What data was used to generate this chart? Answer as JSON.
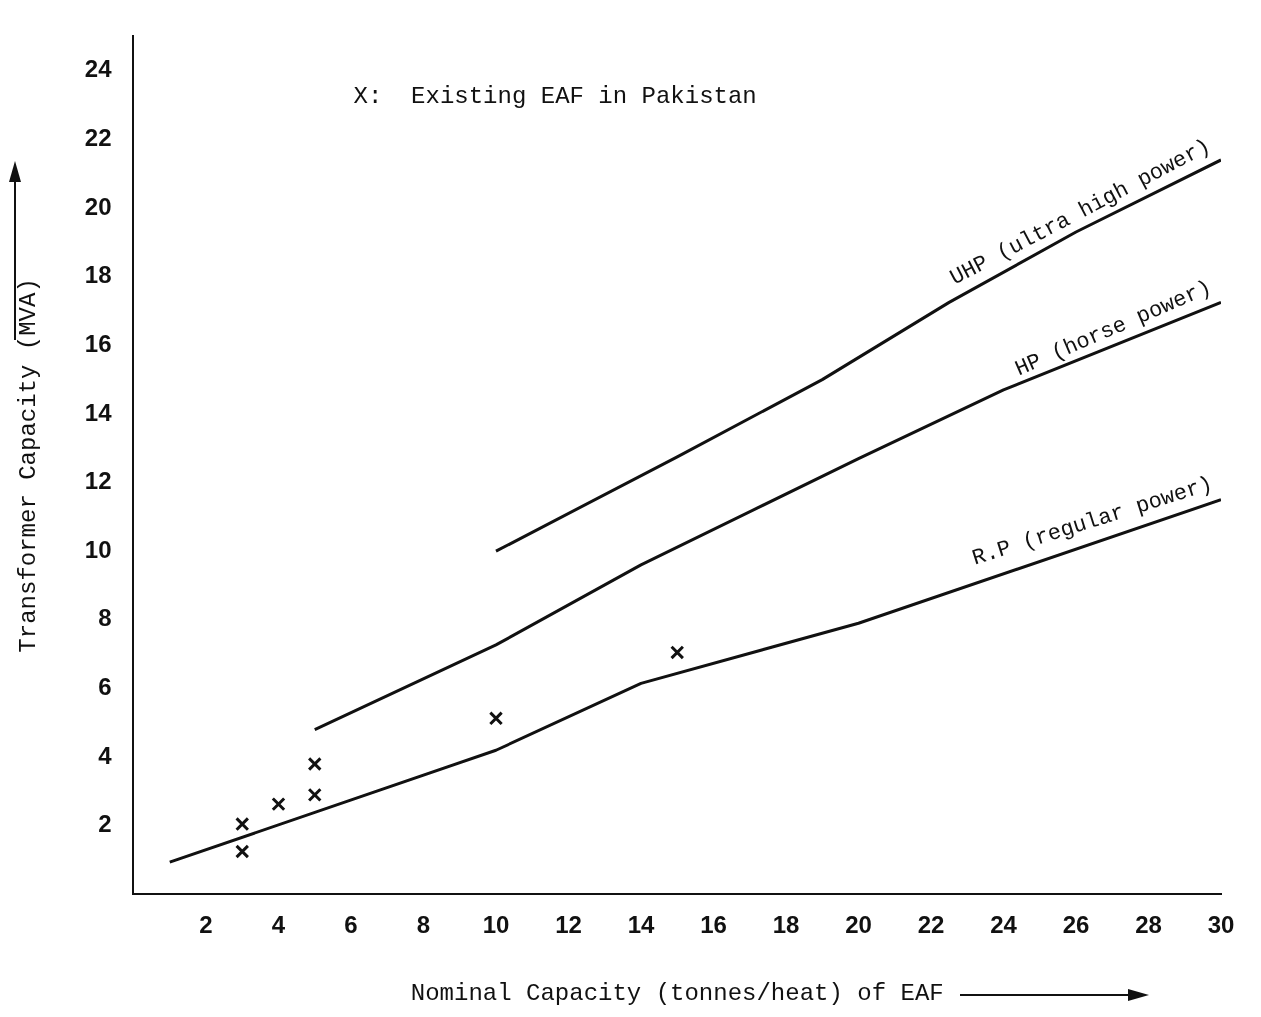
{
  "chart_data": {
    "type": "line",
    "xlabel": "Nominal Capacity (tonnes/heat) of EAF",
    "ylabel": "Transformer Capacity (MVA)",
    "xlim": [
      0,
      30
    ],
    "xticks": [
      2,
      4,
      6,
      8,
      10,
      12,
      14,
      16,
      18,
      20,
      22,
      24,
      26,
      28,
      30
    ],
    "ylim": [
      0,
      25
    ],
    "yticks": [
      2,
      4,
      6,
      8,
      10,
      12,
      14,
      16,
      18,
      20,
      22,
      24
    ],
    "annotations": [
      "X:  Existing EAF in Pakistan"
    ],
    "grid": false,
    "marker": "none",
    "line_style": "solid",
    "series": [
      {
        "name": "UHP (ultra high power)",
        "color": "#111111",
        "x": [
          10,
          15,
          19,
          22.5,
          26,
          30
        ],
        "values": [
          10.0,
          12.75,
          15.0,
          17.25,
          19.3,
          21.4
        ]
      },
      {
        "name": "HP (horse power)",
        "color": "#111111",
        "x": [
          5,
          10,
          14,
          20,
          24,
          30
        ],
        "values": [
          4.8,
          7.27,
          9.6,
          12.7,
          14.7,
          17.25
        ]
      },
      {
        "name": "R.P (regular power)",
        "color": "#111111",
        "x": [
          1,
          10,
          14,
          20,
          30
        ],
        "values": [
          0.94,
          4.2,
          6.15,
          7.9,
          11.5
        ]
      },
      {
        "type": "scatter",
        "marker": "cross",
        "color": "#111111",
        "x": [
          3,
          3,
          4,
          5,
          5,
          10,
          15
        ],
        "values": [
          2.05,
          1.25,
          2.63,
          2.9,
          3.8,
          5.13,
          7.05
        ]
      }
    ]
  }
}
